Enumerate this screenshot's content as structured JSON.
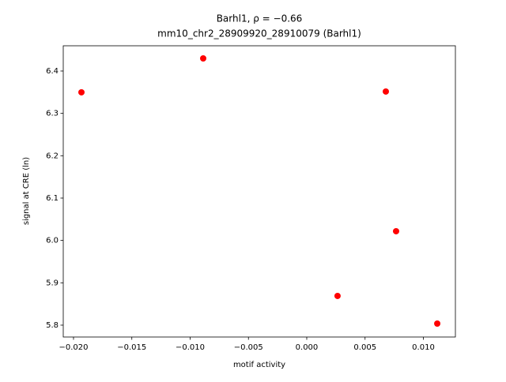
{
  "chart_data": {
    "type": "scatter",
    "title": "Barhl1, ρ = −0.66",
    "subtitle": "mm10_chr2_28909920_28910079 (Barhl1)",
    "xlabel": "motif activity",
    "ylabel": "signal at CRE (ln)",
    "color": "#ff0000",
    "x": [
      -0.01932,
      -0.00888,
      0.00678,
      0.00766,
      0.00264,
      0.01119
    ],
    "values": [
      6.3497,
      6.4298,
      6.3516,
      6.0218,
      5.869,
      5.8037
    ],
    "xlim": [
      -0.02088,
      0.012746
    ],
    "ylim": [
      5.772,
      6.4596
    ],
    "xticks": [
      {
        "value": -0.02,
        "label": "−0.020"
      },
      {
        "value": -0.015,
        "label": "−0.015"
      },
      {
        "value": -0.01,
        "label": "−0.010"
      },
      {
        "value": -0.005,
        "label": "−0.005"
      },
      {
        "value": 0,
        "label": "0.000"
      },
      {
        "value": 0.005,
        "label": "0.005"
      },
      {
        "value": 0.01,
        "label": "0.010"
      }
    ],
    "yticks": [
      5.8,
      5.9,
      {
        "value": 6,
        "label": "6.0"
      },
      6.1,
      6.2,
      6.3,
      6.4
    ],
    "grid": false
  }
}
